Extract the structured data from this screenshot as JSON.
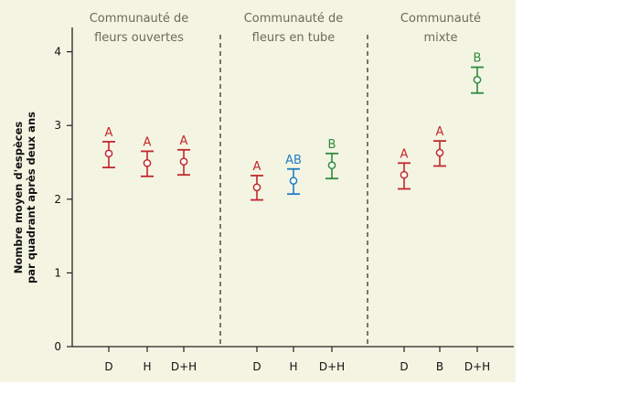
{
  "chart_data": {
    "type": "scatter",
    "ylabel_lines": [
      "Nombre moyen d'espèces",
      "par quadrant après deux ans"
    ],
    "ylim": [
      0,
      4.3
    ],
    "yticks": [
      "0",
      "1",
      "2",
      "3",
      "4"
    ],
    "grid": false,
    "colors": {
      "A": "#c0282d",
      "AB": "#1f7fc1",
      "B": "#2e8b3e"
    },
    "panels": [
      {
        "title_lines": [
          "Communauté de",
          "fleurs ouvertes"
        ],
        "points": [
          {
            "x": "D",
            "mean": 2.62,
            "low": 2.43,
            "high": 2.78,
            "group": "A"
          },
          {
            "x": "H",
            "mean": 2.49,
            "low": 2.31,
            "high": 2.65,
            "group": "A"
          },
          {
            "x": "D+H",
            "mean": 2.51,
            "low": 2.33,
            "high": 2.67,
            "group": "A"
          }
        ]
      },
      {
        "title_lines": [
          "Communauté de",
          "fleurs en tube"
        ],
        "points": [
          {
            "x": "D",
            "mean": 2.16,
            "low": 1.99,
            "high": 2.32,
            "group": "A"
          },
          {
            "x": "H",
            "mean": 2.25,
            "low": 2.07,
            "high": 2.41,
            "group": "AB"
          },
          {
            "x": "D+H",
            "mean": 2.46,
            "low": 2.28,
            "high": 2.62,
            "group": "B"
          }
        ]
      },
      {
        "title_lines": [
          "Communauté",
          "mixte"
        ],
        "points": [
          {
            "x": "D",
            "mean": 2.33,
            "low": 2.14,
            "high": 2.49,
            "group": "A"
          },
          {
            "x": "B",
            "mean": 2.63,
            "low": 2.45,
            "high": 2.79,
            "group": "A"
          },
          {
            "x": "D+H",
            "mean": 3.62,
            "low": 3.44,
            "high": 3.79,
            "group": "B"
          }
        ]
      }
    ]
  }
}
